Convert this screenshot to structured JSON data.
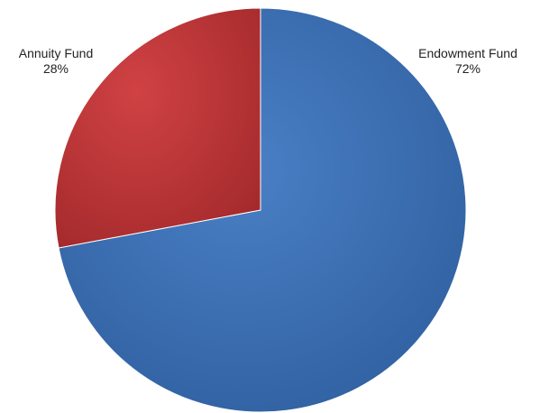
{
  "chart_data": {
    "type": "pie",
    "title": "",
    "slices": [
      {
        "label": "Endowment Fund",
        "value": 72,
        "value_label": "72%",
        "color": "#3a6fb7"
      },
      {
        "label": "Annuity Fund",
        "value": 28,
        "value_label": "28%",
        "color": "#c0393b"
      }
    ],
    "legend": "none"
  }
}
